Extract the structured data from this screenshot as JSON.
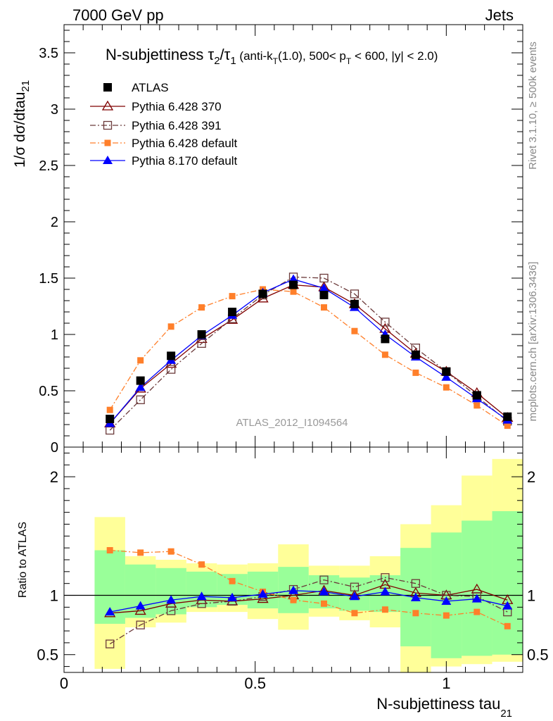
{
  "header": {
    "left": "7000 GeV pp",
    "right": "Jets"
  },
  "side_text": {
    "rivet": "Rivet 3.1.10, ≥ 500k events",
    "mcplots": "mcplots.cern.ch [arXiv:1306.3436]"
  },
  "chart_data": [
    {
      "type": "scatter",
      "title": "N-subjettiness τ2/τ1 (anti-kT(1.0), 500< pT < 600, |y| < 2.0)",
      "title_parts": {
        "main": "N-subjettiness τ",
        "sub1": "2",
        "slash": "/τ",
        "sub2": "1",
        "cond_a": " (anti-k",
        "cond_a_sub": "T",
        "cond_b": "(1.0), 500< p",
        "cond_b_sub": "T",
        "cond_c": " < 600, |y| < 2.0)"
      },
      "ylabel": "1/σ dσ/dtau",
      "ylabel_sub": "21",
      "watermark": "ATLAS_2012_I1094564",
      "xlim": [
        0,
        1.2
      ],
      "ylim": [
        0,
        3.75
      ],
      "y_ticks": [
        "0",
        "0.5",
        "1",
        "1.5",
        "2",
        "2.5",
        "3",
        "3.5"
      ],
      "x": [
        0.12,
        0.2,
        0.28,
        0.36,
        0.44,
        0.52,
        0.6,
        0.68,
        0.76,
        0.84,
        0.92,
        1.0,
        1.08,
        1.16
      ],
      "series": [
        {
          "name": "ATLAS",
          "color": "#000000",
          "marker": "square-filled",
          "line": "none",
          "values": [
            0.25,
            0.59,
            0.81,
            1.0,
            1.2,
            1.36,
            1.44,
            1.35,
            1.27,
            0.96,
            0.82,
            0.67,
            0.46,
            0.27
          ]
        },
        {
          "name": "Pythia 6.428 370",
          "color": "#7f0000",
          "marker": "triangle-open",
          "line": "solid",
          "values": [
            0.21,
            0.52,
            0.74,
            0.96,
            1.13,
            1.32,
            1.44,
            1.42,
            1.27,
            1.05,
            0.83,
            0.67,
            0.48,
            0.26
          ]
        },
        {
          "name": "Pythia 6.428 391",
          "color": "#6b3a3a",
          "marker": "square-open",
          "line": "dashdot",
          "values": [
            0.15,
            0.42,
            0.69,
            0.92,
            1.14,
            1.35,
            1.51,
            1.5,
            1.36,
            1.11,
            0.88,
            0.67,
            0.45,
            0.23
          ]
        },
        {
          "name": "Pythia 6.428 default",
          "color": "#ff7f2a",
          "marker": "square-small-filled",
          "line": "dashdot",
          "values": [
            0.33,
            0.77,
            1.07,
            1.24,
            1.34,
            1.4,
            1.38,
            1.24,
            1.03,
            0.82,
            0.66,
            0.53,
            0.37,
            0.19
          ]
        },
        {
          "name": "Pythia 8.170 default",
          "color": "#0000ff",
          "marker": "triangle-filled",
          "line": "solid",
          "values": [
            0.21,
            0.53,
            0.77,
            0.99,
            1.17,
            1.37,
            1.49,
            1.41,
            1.24,
            1.0,
            0.8,
            0.62,
            0.43,
            0.24
          ]
        }
      ]
    },
    {
      "type": "line",
      "ylabel": "Ratio to ATLAS",
      "xlabel": "N-subjettiness tau",
      "xlabel_sub": "21",
      "xlim": [
        0,
        1.2
      ],
      "ylim": [
        0.35,
        2.25
      ],
      "x_ticks": [
        "0",
        "0.5",
        "1"
      ],
      "y_ticks": [
        "0.5",
        "1",
        "2"
      ],
      "band_edges": [
        0.08,
        0.16,
        0.24,
        0.32,
        0.4,
        0.48,
        0.56,
        0.64,
        0.72,
        0.8,
        0.88,
        0.96,
        1.04,
        1.12,
        1.2
      ],
      "band_yellow": [
        [
          0.38,
          1.66
        ],
        [
          0.73,
          1.33
        ],
        [
          0.77,
          1.3
        ],
        [
          0.86,
          1.27
        ],
        [
          0.86,
          1.26
        ],
        [
          0.8,
          1.27
        ],
        [
          0.71,
          1.43
        ],
        [
          0.82,
          1.25
        ],
        [
          0.79,
          1.25
        ],
        [
          0.73,
          1.33
        ],
        [
          0.35,
          1.6
        ],
        [
          0.4,
          1.76
        ],
        [
          0.42,
          2.01
        ],
        [
          0.44,
          2.15
        ],
        [
          0.47,
          2.22
        ]
      ],
      "band_green": [
        [
          0.76,
          1.38
        ],
        [
          0.81,
          1.26
        ],
        [
          0.84,
          1.23
        ],
        [
          0.9,
          1.2
        ],
        [
          0.92,
          1.18
        ],
        [
          0.89,
          1.2
        ],
        [
          0.85,
          1.24
        ],
        [
          0.89,
          1.17
        ],
        [
          0.87,
          1.15
        ],
        [
          0.86,
          1.17
        ],
        [
          0.57,
          1.4
        ],
        [
          0.47,
          1.53
        ],
        [
          0.49,
          1.63
        ],
        [
          0.5,
          1.71
        ],
        [
          0.51,
          1.74
        ]
      ],
      "x": [
        0.12,
        0.2,
        0.28,
        0.36,
        0.44,
        0.52,
        0.6,
        0.68,
        0.76,
        0.84,
        0.92,
        1.0,
        1.08,
        1.16
      ],
      "series": [
        {
          "name": "Pythia 6.428 370",
          "color": "#7f0000",
          "marker": "triangle-open",
          "line": "solid",
          "values": [
            0.85,
            0.87,
            0.93,
            0.96,
            0.95,
            0.97,
            1.0,
            1.04,
            1.0,
            1.09,
            1.02,
            1.0,
            1.05,
            0.96
          ]
        },
        {
          "name": "Pythia 6.428 391",
          "color": "#6b3a3a",
          "marker": "square-open",
          "line": "dashdot",
          "values": [
            0.59,
            0.75,
            0.87,
            0.93,
            0.95,
            0.99,
            1.05,
            1.13,
            1.07,
            1.15,
            1.1,
            1.0,
            0.99,
            0.86
          ]
        },
        {
          "name": "Pythia 6.428 default",
          "color": "#ff7f2a",
          "marker": "square-small-filled",
          "line": "dashdot",
          "values": [
            1.38,
            1.36,
            1.37,
            1.26,
            1.12,
            1.03,
            0.96,
            0.93,
            0.85,
            0.88,
            0.85,
            0.83,
            0.86,
            0.74
          ]
        },
        {
          "name": "Pythia 8.170 default",
          "color": "#0000ff",
          "marker": "triangle-filled",
          "line": "solid",
          "values": [
            0.86,
            0.91,
            0.96,
            0.99,
            0.98,
            1.01,
            1.04,
            1.03,
            0.99,
            1.03,
            0.98,
            0.95,
            0.97,
            0.91
          ]
        }
      ]
    }
  ]
}
